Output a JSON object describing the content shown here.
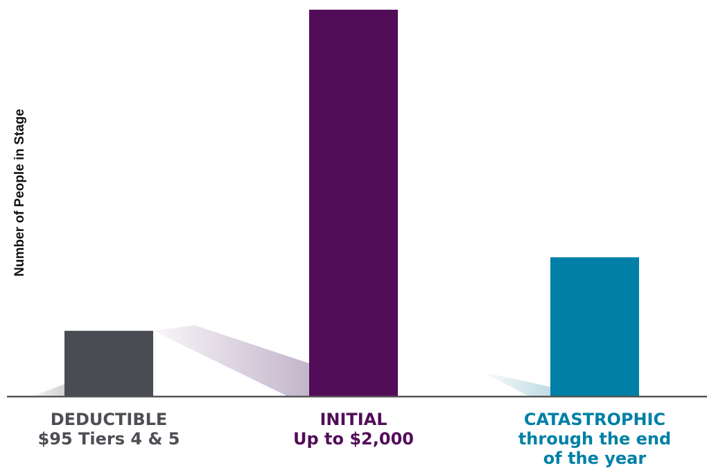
{
  "chart_data": {
    "type": "bar",
    "ylabel": "Number of People in Stage",
    "xlabel": "",
    "ylim": [
      0,
      100
    ],
    "categories": [
      {
        "lines": [
          "DEDUCTIBLE",
          "$95 Tiers 4 & 5"
        ],
        "value": 17,
        "color": "#4a4c53"
      },
      {
        "lines": [
          "INITIAL",
          "Up to $2,000"
        ],
        "value": 100,
        "color": "#520d59"
      },
      {
        "lines": [
          "CATASTROPHIC",
          "through the end",
          "of the year"
        ],
        "value": 36,
        "color": "#0080a6"
      }
    ],
    "grid": false,
    "axis_color": "#555555"
  }
}
